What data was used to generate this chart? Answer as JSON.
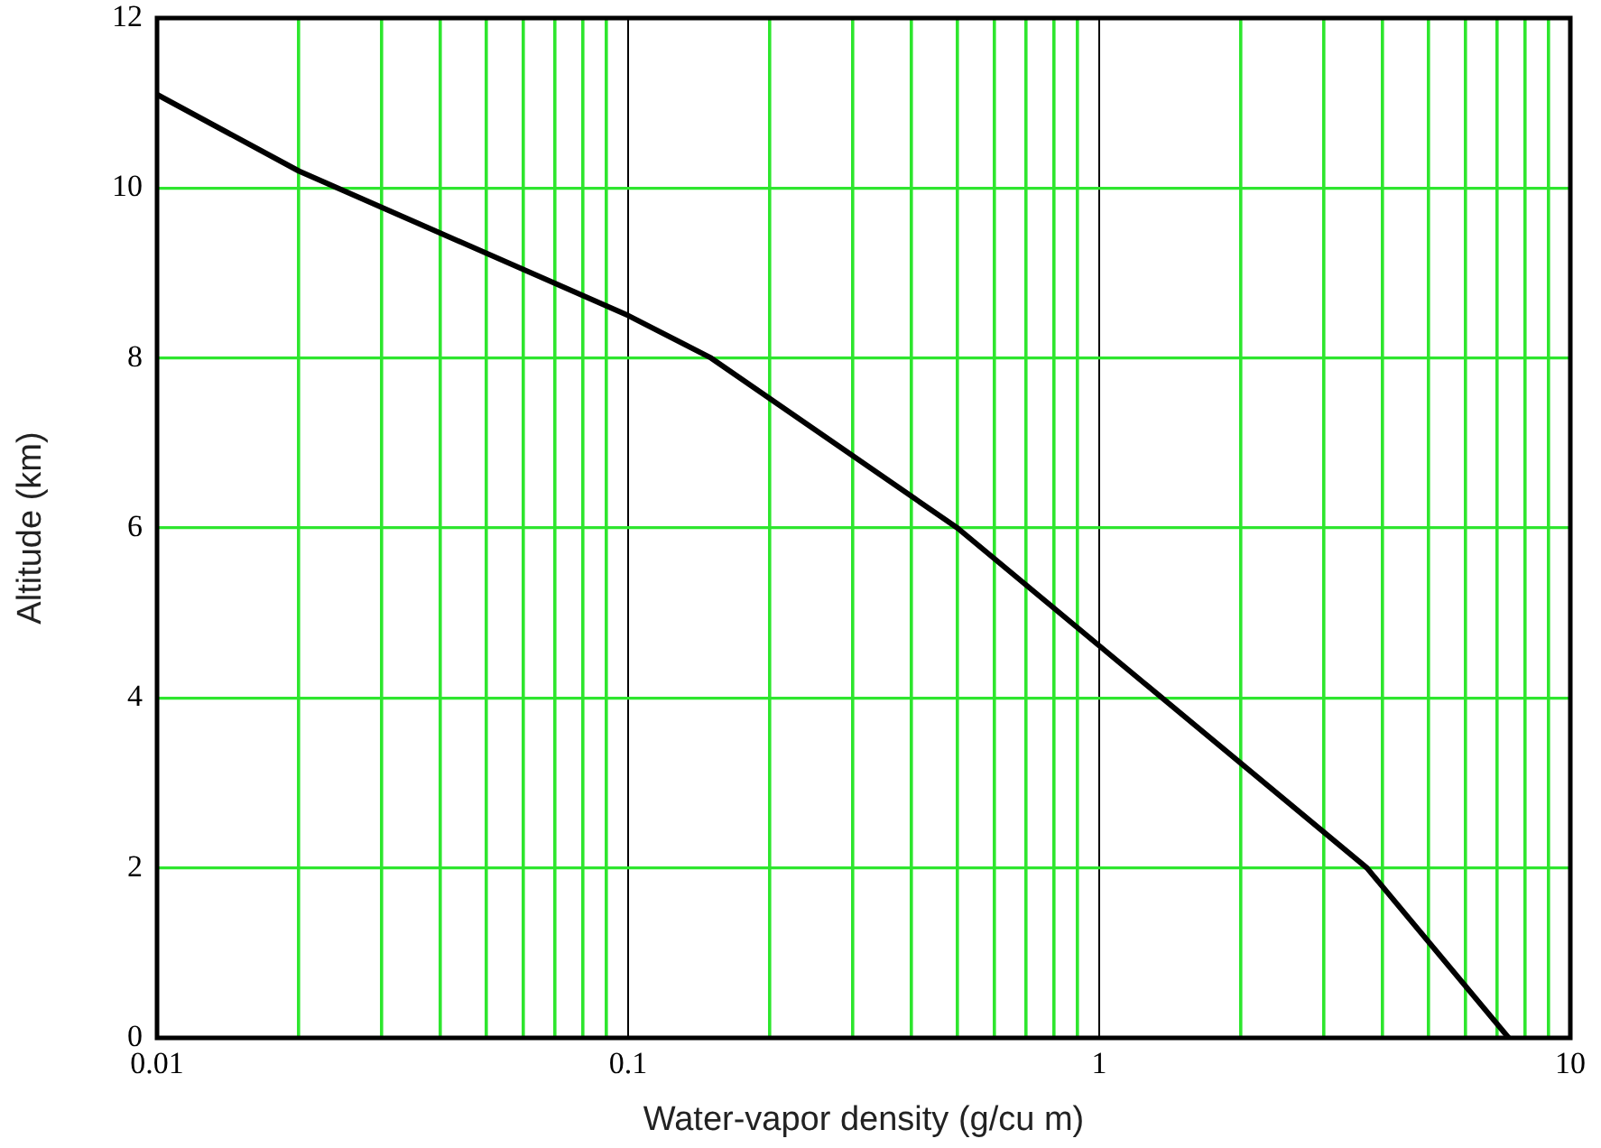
{
  "chart_data": {
    "type": "line",
    "xlabel": "Water-vapor density (g/cu m)",
    "ylabel": "Altitude (km)",
    "x": [
      0.01,
      0.02,
      0.1,
      0.15,
      0.5,
      3.7,
      7.4
    ],
    "values": [
      11.1,
      10.2,
      8.5,
      8.0,
      6,
      2,
      0
    ],
    "color": "#000000",
    "xlim": [
      0.01,
      10
    ],
    "ylim": [
      0,
      12
    ],
    "xticks": [
      0.01,
      {
        "value": 0.02,
        "label": null
      },
      {
        "value": 0.03,
        "label": null
      },
      {
        "value": 0.04,
        "label": null
      },
      {
        "value": 0.05,
        "label": null
      },
      {
        "value": 0.06,
        "label": null
      },
      {
        "value": 0.07,
        "label": null
      },
      {
        "value": 0.08,
        "label": null
      },
      {
        "value": 0.09,
        "label": null
      },
      0.1,
      {
        "value": 0.2,
        "label": null
      },
      {
        "value": 0.3,
        "label": null
      },
      {
        "value": 0.4,
        "label": null
      },
      {
        "value": 0.5,
        "label": null
      },
      {
        "value": 0.6,
        "label": null
      },
      {
        "value": 0.7,
        "label": null
      },
      {
        "value": 0.8,
        "label": null
      },
      {
        "value": 0.9,
        "label": null
      },
      1,
      {
        "value": 2,
        "label": null
      },
      {
        "value": 3,
        "label": null
      },
      {
        "value": 4,
        "label": null
      },
      {
        "value": 5,
        "label": null
      },
      {
        "value": 6,
        "label": null
      },
      {
        "value": 7,
        "label": null
      },
      {
        "value": 8,
        "label": null
      },
      {
        "value": 9,
        "label": null
      },
      10
    ],
    "yticks": [
      0,
      2,
      4,
      6,
      8,
      10,
      12
    ],
    "log": "x",
    "grid": true,
    "marker": "none",
    "line_style": "solid"
  }
}
